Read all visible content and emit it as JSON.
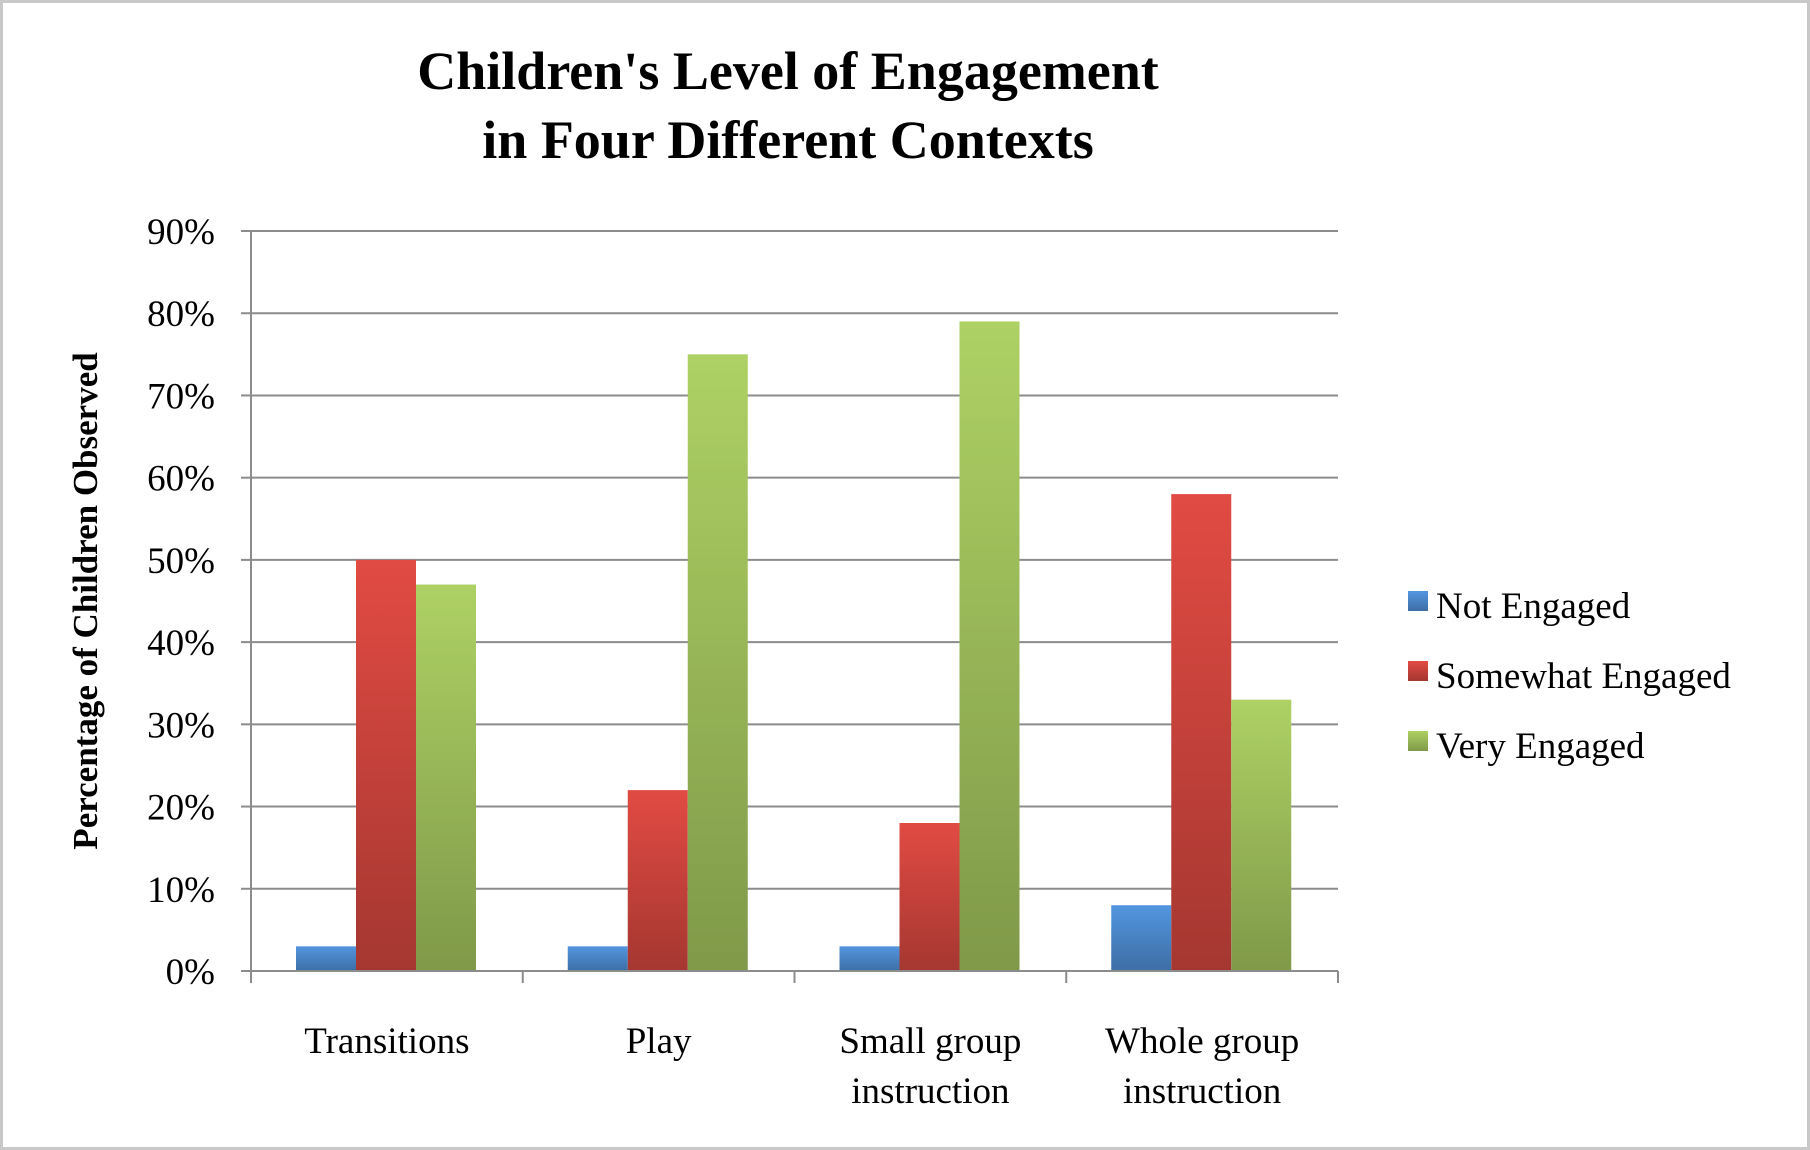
{
  "chart_data": {
    "type": "bar",
    "title_lines": [
      "Children's Level of Engagement",
      "in Four Different Contexts"
    ],
    "xlabel": "",
    "ylabel": "Percentage of Children Observed",
    "categories": [
      [
        "Transitions"
      ],
      [
        "Play"
      ],
      [
        "Small group",
        "instruction"
      ],
      [
        "Whole group",
        "instruction"
      ]
    ],
    "y_ticks": [
      "0%",
      "10%",
      "20%",
      "30%",
      "40%",
      "50%",
      "60%",
      "70%",
      "80%",
      "90%"
    ],
    "ylim": [
      0,
      90
    ],
    "y_unit": "%",
    "grid": true,
    "legend_position": "right",
    "series": [
      {
        "name": "Not Engaged",
        "color": "#4a86c8",
        "values": [
          3,
          3,
          3,
          8
        ]
      },
      {
        "name": "Somewhat Engaged",
        "color": "#c9433c",
        "values": [
          50,
          22,
          18,
          58
        ]
      },
      {
        "name": "Very Engaged",
        "color": "#9bbb59",
        "values": [
          47,
          75,
          79,
          33
        ]
      }
    ]
  }
}
